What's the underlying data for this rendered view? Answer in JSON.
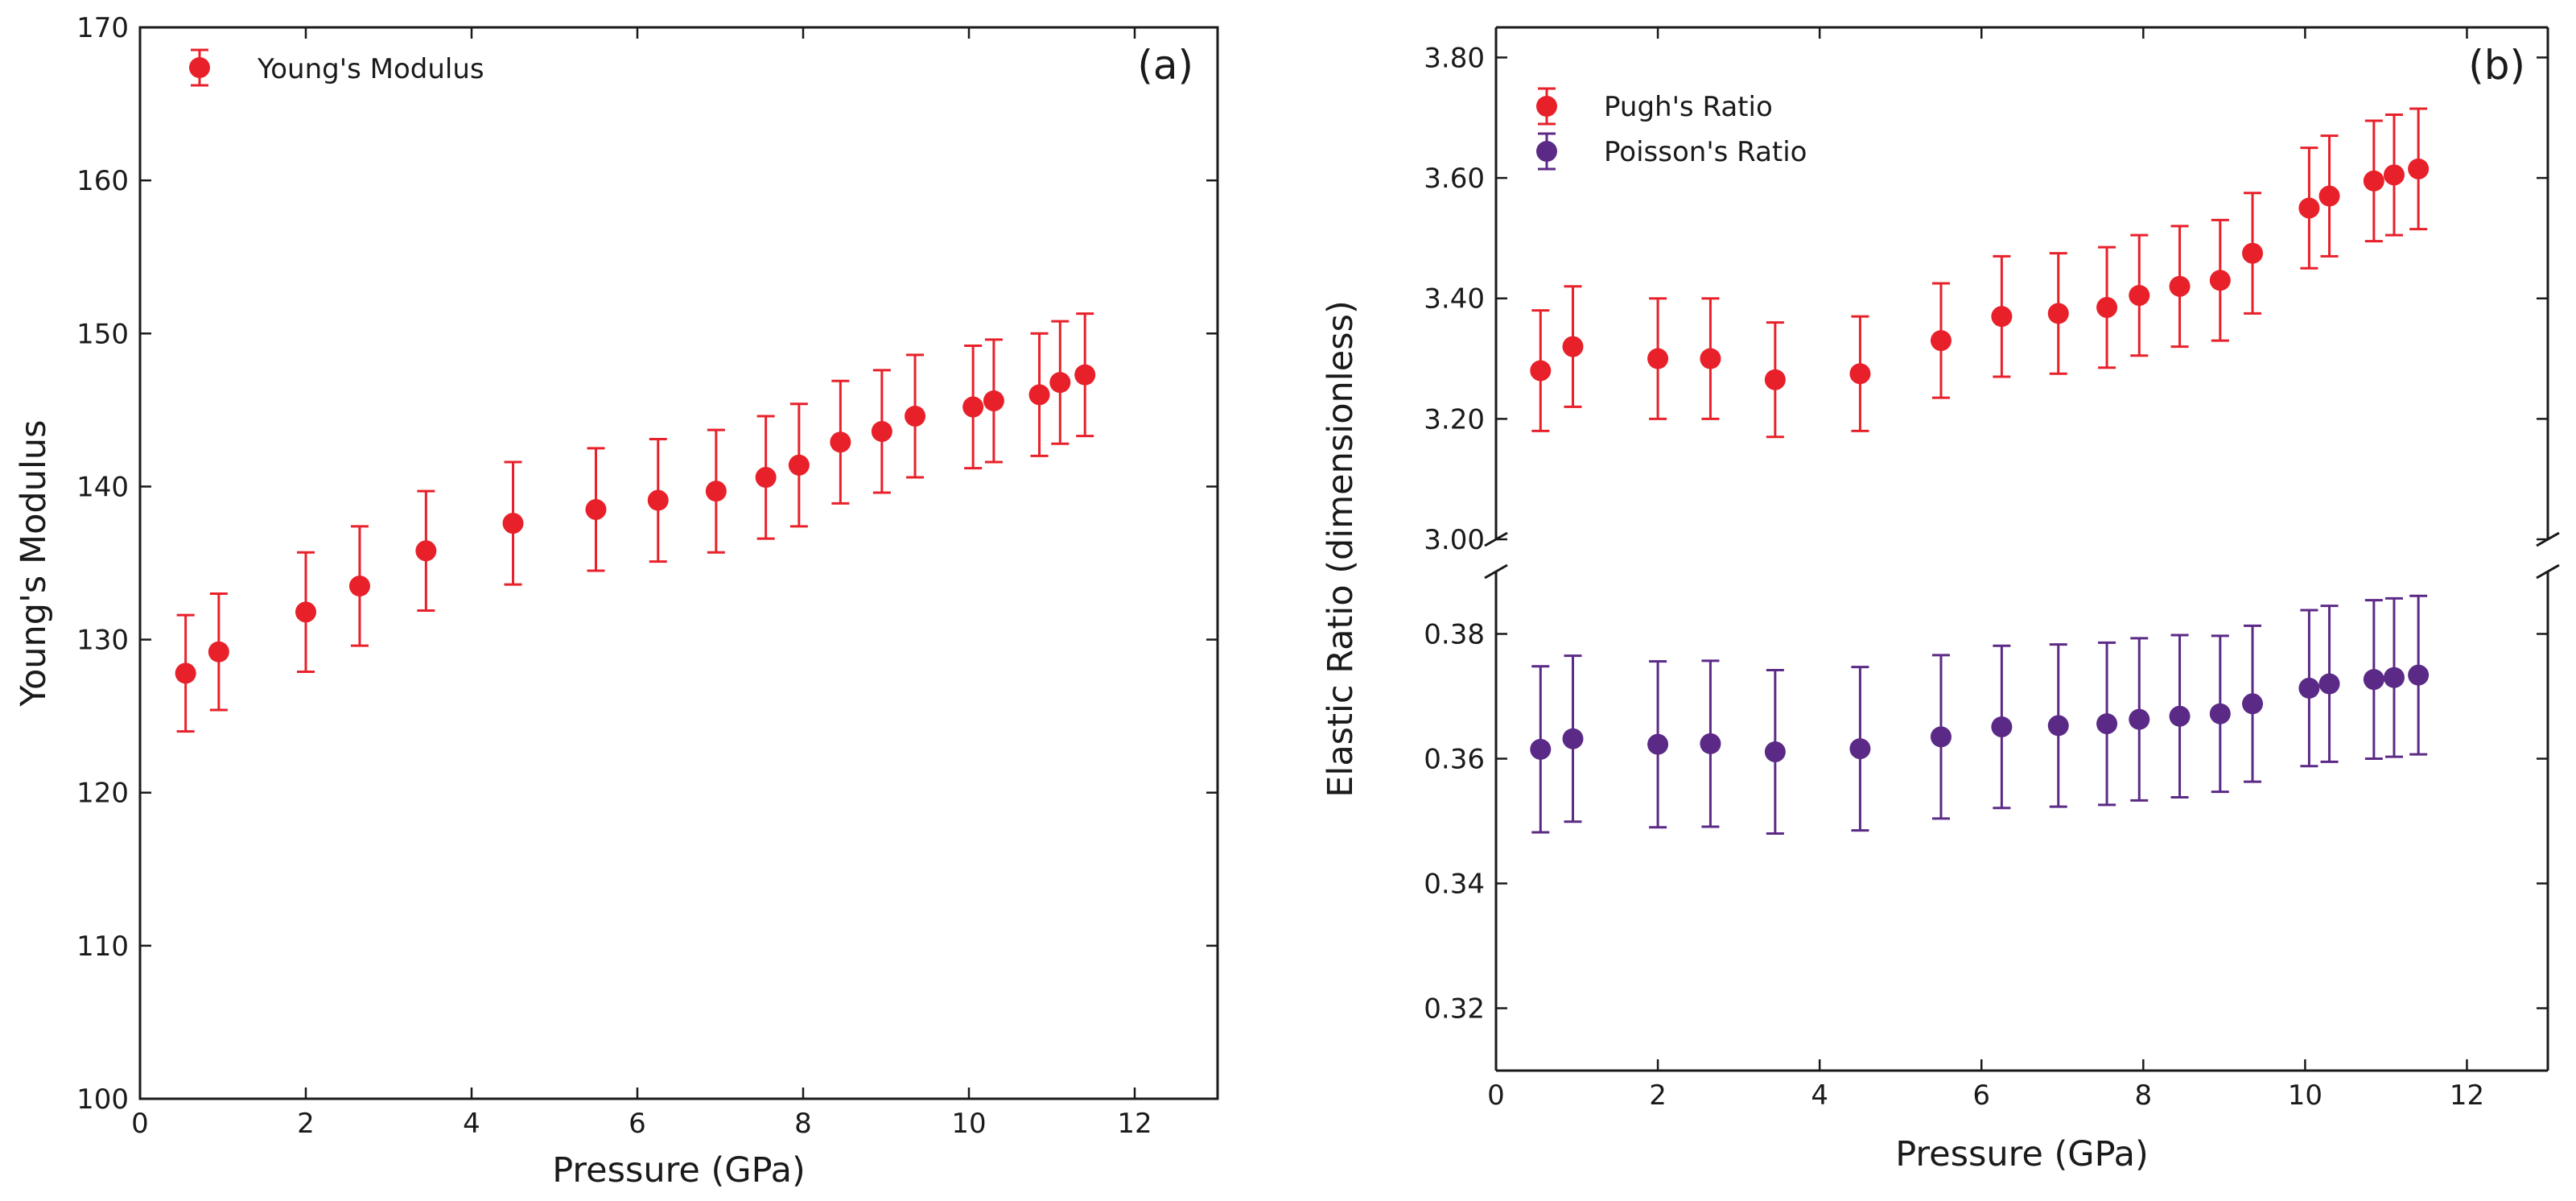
{
  "chart_data": [
    {
      "type": "scatter",
      "panel_label": "(a)",
      "xlabel": "Pressure (GPa)",
      "ylabel": "Young's Modulus",
      "xlim": [
        0,
        13
      ],
      "ylim": [
        100,
        170
      ],
      "xticks": [
        0,
        2,
        4,
        6,
        8,
        10,
        12
      ],
      "yticks": [
        100,
        110,
        120,
        130,
        140,
        150,
        160,
        170
      ],
      "grid": false,
      "legend_position": "top-left",
      "series": [
        {
          "name": "Young's Modulus",
          "color": "#e8202a",
          "x": [
            0.55,
            0.95,
            2.0,
            2.65,
            3.45,
            4.5,
            5.5,
            6.25,
            6.95,
            7.55,
            7.95,
            8.45,
            8.95,
            9.35,
            10.05,
            10.3,
            10.85,
            11.1,
            11.4
          ],
          "y": [
            127.8,
            129.2,
            131.8,
            133.5,
            135.8,
            137.6,
            138.5,
            139.1,
            139.7,
            140.6,
            141.4,
            142.9,
            143.6,
            144.6,
            145.2,
            145.6,
            146.0,
            146.8,
            147.3
          ],
          "yerr": [
            3.8,
            3.8,
            3.9,
            3.9,
            3.9,
            4.0,
            4.0,
            4.0,
            4.0,
            4.0,
            4.0,
            4.0,
            4.0,
            4.0,
            4.0,
            4.0,
            4.0,
            4.0,
            4.0
          ]
        }
      ]
    },
    {
      "type": "scatter",
      "panel_label": "(b)",
      "xlabel": "Pressure (GPa)",
      "ylabel": "Elastic Ratio (dimensionless)",
      "xlim": [
        0,
        13
      ],
      "broken_y_axis": true,
      "upper_ylim": [
        3.0,
        3.85
      ],
      "upper_yticks": [
        "3.00",
        "3.20",
        "3.40",
        "3.60",
        "3.80"
      ],
      "lower_ylim": [
        0.31,
        0.39
      ],
      "lower_yticks": [
        "0.32",
        "0.34",
        "0.36",
        "0.38"
      ],
      "xticks": [
        0,
        2,
        4,
        6,
        8,
        10,
        12
      ],
      "grid": false,
      "legend_position": "top-left",
      "series": [
        {
          "name": "Pugh's Ratio",
          "color": "#e8202a",
          "axis": "upper",
          "x": [
            0.55,
            0.95,
            2.0,
            2.65,
            3.45,
            4.5,
            5.5,
            6.25,
            6.95,
            7.55,
            7.95,
            8.45,
            8.95,
            9.35,
            10.05,
            10.3,
            10.85,
            11.1,
            11.4
          ],
          "y": [
            3.28,
            3.32,
            3.3,
            3.3,
            3.265,
            3.275,
            3.33,
            3.37,
            3.375,
            3.385,
            3.405,
            3.42,
            3.43,
            3.475,
            3.55,
            3.57,
            3.595,
            3.605,
            3.615
          ],
          "yerr": [
            0.1,
            0.1,
            0.1,
            0.1,
            0.095,
            0.095,
            0.095,
            0.1,
            0.1,
            0.1,
            0.1,
            0.1,
            0.1,
            0.1,
            0.1,
            0.1,
            0.1,
            0.1,
            0.1
          ]
        },
        {
          "name": "Poisson's Ratio",
          "color": "#5b2a86",
          "axis": "lower",
          "x": [
            0.55,
            0.95,
            2.0,
            2.65,
            3.45,
            4.5,
            5.5,
            6.25,
            6.95,
            7.55,
            7.95,
            8.45,
            8.95,
            9.35,
            10.05,
            10.3,
            10.85,
            11.1,
            11.4
          ],
          "y": [
            0.3615,
            0.3632,
            0.3623,
            0.3624,
            0.3611,
            0.3616,
            0.3635,
            0.3651,
            0.3653,
            0.3656,
            0.3663,
            0.3668,
            0.3672,
            0.3688,
            0.3713,
            0.372,
            0.3727,
            0.373,
            0.3734
          ],
          "yerr": [
            0.0133,
            0.0133,
            0.0133,
            0.0133,
            0.0131,
            0.0131,
            0.0131,
            0.013,
            0.013,
            0.013,
            0.013,
            0.013,
            0.0125,
            0.0125,
            0.0125,
            0.0125,
            0.0127,
            0.0127,
            0.0127
          ]
        }
      ]
    }
  ]
}
